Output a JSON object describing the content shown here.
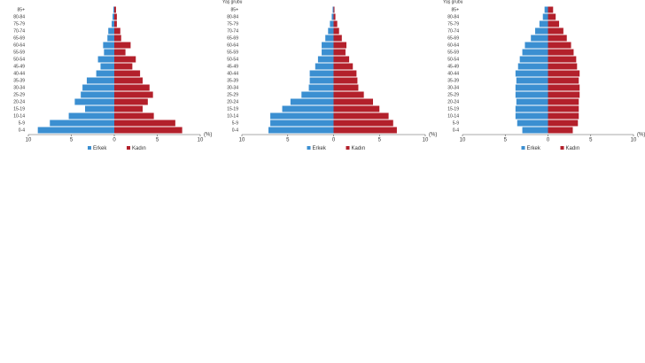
{
  "chart_data": [
    {
      "type": "pyramid",
      "categories": [
        "85+",
        "80-84",
        "75-79",
        "70-74",
        "65-69",
        "60-64",
        "55-59",
        "50-54",
        "45-49",
        "40-44",
        "35-39",
        "30-34",
        "25-29",
        "20-24",
        "15-19",
        "10-14",
        "5-9",
        "0-4"
      ],
      "series": [
        {
          "name": "Erkek",
          "color": "#3b8fd1",
          "values": [
            -0.1,
            -0.2,
            -0.3,
            -0.7,
            -0.8,
            -1.3,
            -1.2,
            -1.9,
            -1.6,
            -2.1,
            -3.2,
            -3.7,
            -3.9,
            -4.6,
            -3.4,
            -5.3,
            -7.5,
            -8.9
          ]
        },
        {
          "name": "Kadın",
          "color": "#b3202b",
          "values": [
            0.2,
            0.3,
            0.3,
            0.7,
            0.8,
            1.9,
            1.3,
            2.5,
            2.1,
            3.0,
            3.3,
            4.1,
            4.5,
            3.9,
            3.3,
            4.6,
            7.1,
            7.9
          ]
        }
      ],
      "x_label": "(%)",
      "xlim": [
        -10,
        10
      ],
      "xticks": [
        {
          "value": -10,
          "label": "10"
        },
        {
          "value": -5,
          "label": "5"
        },
        0,
        5,
        10
      ]
    },
    {
      "type": "pyramid",
      "y_label": "Yaş grubu",
      "categories": [
        "85+",
        "80-84",
        "75-79",
        "70-74",
        "65-69",
        "60-64",
        "55-59",
        "50-54",
        "45-49",
        "40-44",
        "35-39",
        "30-34",
        "25-29",
        "20-24",
        "15-19",
        "10-14",
        "5-9",
        "0-4"
      ],
      "series": [
        {
          "name": "Erkek",
          "color": "#3b8fd1",
          "values": [
            -0.1,
            -0.2,
            -0.4,
            -0.6,
            -0.9,
            -1.3,
            -1.3,
            -1.7,
            -2.0,
            -2.6,
            -2.6,
            -2.7,
            -3.5,
            -4.7,
            -5.6,
            -6.9,
            -6.9,
            -7.1
          ]
        },
        {
          "name": "Kadın",
          "color": "#b3202b",
          "values": [
            0.1,
            0.2,
            0.4,
            0.6,
            0.9,
            1.4,
            1.3,
            1.7,
            2.1,
            2.5,
            2.6,
            2.7,
            3.3,
            4.3,
            5.0,
            6.0,
            6.5,
            6.9
          ]
        }
      ],
      "x_label": "(%)",
      "xlim": [
        -10,
        10
      ],
      "xticks": [
        {
          "value": -10,
          "label": "10"
        },
        {
          "value": -5,
          "label": "5"
        },
        0,
        5,
        10
      ]
    },
    {
      "type": "pyramid",
      "y_label": "Yaş grubu",
      "categories": [
        "85+",
        "80-84",
        "75-79",
        "70-74",
        "65-69",
        "60-64",
        "55-59",
        "50-54",
        "45-49",
        "40-44",
        "35-39",
        "30-34",
        "25-29",
        "20-24",
        "15-19",
        "10-14",
        "5-9",
        "0-4"
      ],
      "series": [
        {
          "name": "Erkek",
          "color": "#3b8fd1",
          "values": [
            -0.4,
            -0.6,
            -1.0,
            -1.5,
            -2.0,
            -2.7,
            -3.0,
            -3.3,
            -3.5,
            -3.8,
            -3.7,
            -3.8,
            -3.8,
            -3.7,
            -3.8,
            -3.8,
            -3.6,
            -3.0
          ]
        },
        {
          "name": "Kadın",
          "color": "#b3202b",
          "values": [
            0.6,
            0.9,
            1.3,
            1.8,
            2.2,
            2.7,
            3.0,
            3.3,
            3.4,
            3.7,
            3.6,
            3.7,
            3.7,
            3.6,
            3.6,
            3.6,
            3.5,
            2.9
          ]
        }
      ],
      "x_label": "(%)",
      "xlim": [
        -10,
        10
      ],
      "xticks": [
        {
          "value": -10,
          "label": "10"
        },
        {
          "value": -5,
          "label": "5"
        },
        0,
        5,
        10
      ]
    }
  ]
}
